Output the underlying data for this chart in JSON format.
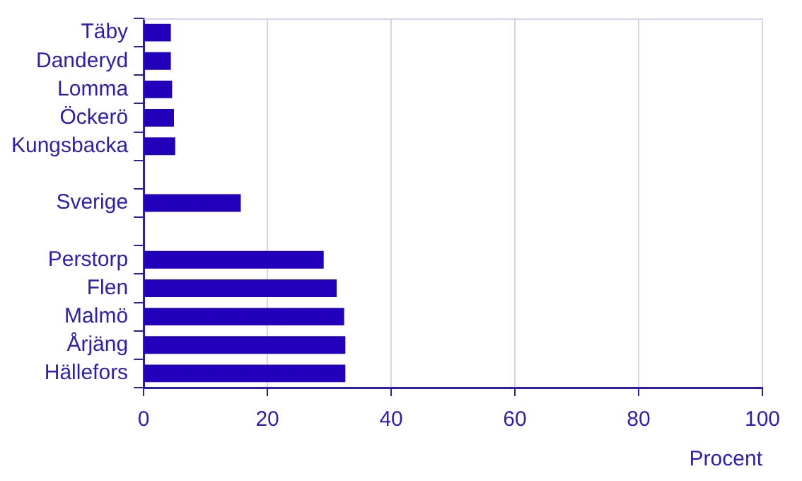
{
  "chart_data": {
    "type": "bar",
    "orientation": "horizontal",
    "categories": [
      "Täby",
      "Danderyd",
      "Lomma",
      "Öckerö",
      "Kungsbacka",
      null,
      "Sverige",
      null,
      "Perstorp",
      "Flen",
      "Malmö",
      "Årjäng",
      "Hällefors"
    ],
    "values": [
      4.4,
      4.4,
      4.6,
      4.9,
      5.1,
      null,
      15.7,
      null,
      29.1,
      31.2,
      32.4,
      32.6,
      32.6
    ],
    "color": "#2200bb",
    "xlabel": "Procent",
    "xlim": [
      0,
      100
    ],
    "xticks": [
      0,
      20,
      40,
      60,
      80,
      100
    ],
    "grid": "x",
    "legend": false
  }
}
